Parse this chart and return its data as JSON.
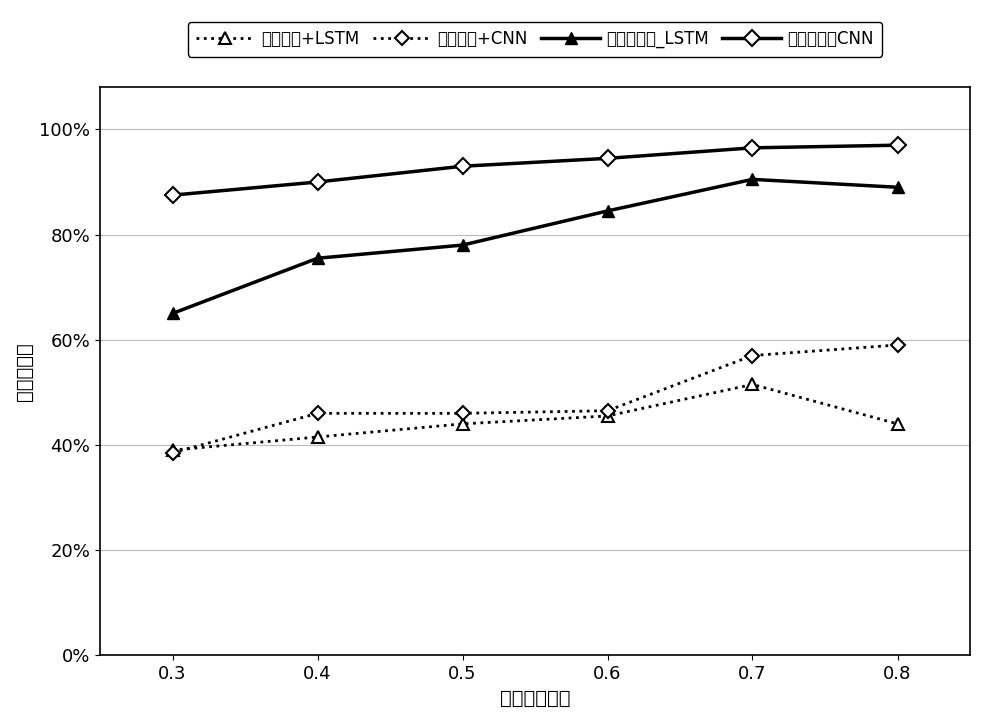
{
  "x": [
    0.3,
    0.4,
    0.5,
    0.6,
    0.7,
    0.8
  ],
  "original_lstm": [
    0.39,
    0.415,
    0.44,
    0.455,
    0.515,
    0.44
  ],
  "original_cnn": [
    0.385,
    0.46,
    0.46,
    0.465,
    0.57,
    0.59
  ],
  "invention_lstm": [
    0.65,
    0.755,
    0.78,
    0.845,
    0.905,
    0.89
  ],
  "invention_cnn": [
    0.875,
    0.9,
    0.93,
    0.945,
    0.965,
    0.97
  ],
  "legend_labels": [
    "原始数据+LSTM",
    "原始数据+CNN",
    "本发明方法_LSTM",
    "本发明方法CNN"
  ],
  "xlabel": "训练样本占比",
  "ylabel": "诊断准确率",
  "line_color": "#000000",
  "background_color": "#ffffff",
  "ylim": [
    0.0,
    1.08
  ],
  "yticks": [
    0.0,
    0.2,
    0.4,
    0.6,
    0.8,
    1.0
  ],
  "ytick_labels": [
    "0%",
    "20%",
    "40%",
    "60%",
    "80%",
    "100%"
  ],
  "xticks": [
    0.3,
    0.4,
    0.5,
    0.6,
    0.7,
    0.8
  ]
}
